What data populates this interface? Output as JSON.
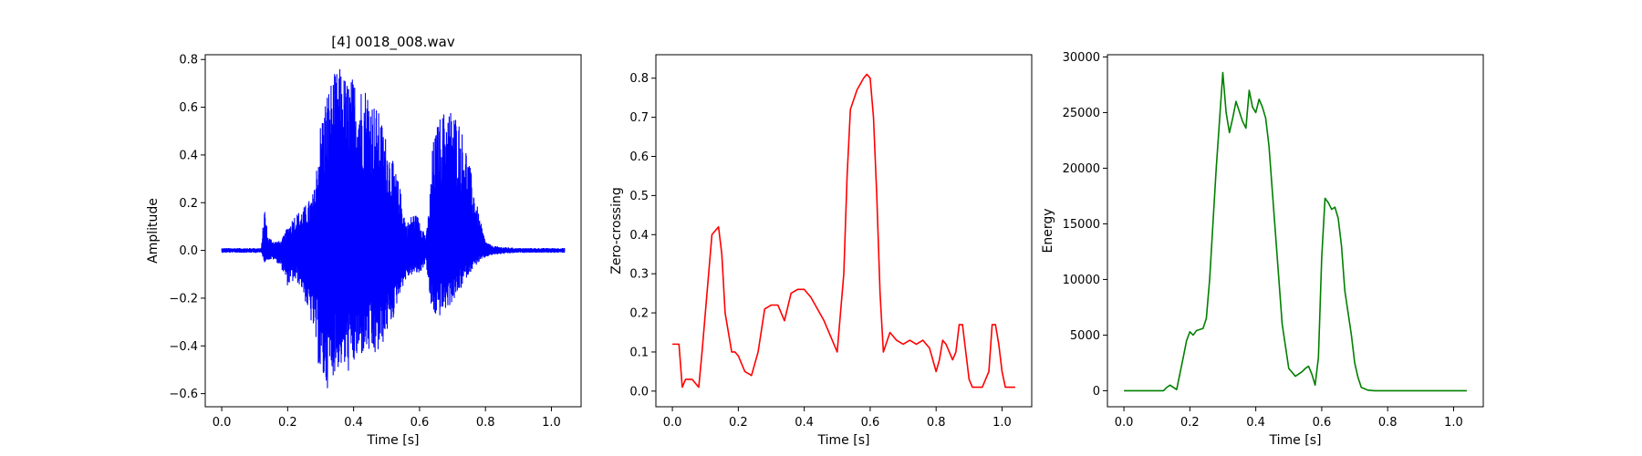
{
  "chart_data": [
    {
      "type": "line",
      "title": "[4] 0018_008.wav",
      "xlabel": "Time [s]",
      "ylabel": "Amplitude",
      "xlim": [
        -0.05,
        1.09
      ],
      "ylim": [
        -0.655,
        0.82
      ],
      "xticks": [
        0.0,
        0.2,
        0.4,
        0.6,
        0.8,
        1.0
      ],
      "xtick_labels": [
        "0.0",
        "0.2",
        "0.4",
        "0.6",
        "0.8",
        "1.0"
      ],
      "yticks": [
        -0.6,
        -0.4,
        -0.2,
        0.0,
        0.2,
        0.4,
        0.6,
        0.8
      ],
      "ytick_labels": [
        "−0.6",
        "−0.4",
        "−0.2",
        "0.0",
        "0.2",
        "0.4",
        "0.6",
        "0.8"
      ],
      "grid": false,
      "color": "#0000ff",
      "series": [
        {
          "style": "waveform",
          "envelope_x": [
            0.0,
            0.12,
            0.13,
            0.14,
            0.16,
            0.18,
            0.2,
            0.22,
            0.24,
            0.26,
            0.28,
            0.3,
            0.32,
            0.34,
            0.36,
            0.38,
            0.4,
            0.42,
            0.44,
            0.46,
            0.48,
            0.5,
            0.52,
            0.54,
            0.56,
            0.58,
            0.6,
            0.62,
            0.63,
            0.64,
            0.66,
            0.68,
            0.7,
            0.72,
            0.74,
            0.76,
            0.78,
            0.8,
            0.82,
            0.85,
            0.9,
            1.04
          ],
          "envelope_upper": [
            0.01,
            0.01,
            0.19,
            0.06,
            0.04,
            0.04,
            0.1,
            0.15,
            0.17,
            0.2,
            0.25,
            0.55,
            0.68,
            0.74,
            0.77,
            0.72,
            0.73,
            0.7,
            0.7,
            0.63,
            0.57,
            0.47,
            0.37,
            0.27,
            0.11,
            0.16,
            0.14,
            0.06,
            0.2,
            0.45,
            0.56,
            0.6,
            0.6,
            0.55,
            0.45,
            0.3,
            0.15,
            0.04,
            0.02,
            0.015,
            0.01,
            0.01
          ],
          "envelope_lower": [
            -0.01,
            -0.01,
            -0.05,
            -0.04,
            -0.04,
            -0.07,
            -0.15,
            -0.13,
            -0.15,
            -0.25,
            -0.35,
            -0.55,
            -0.58,
            -0.52,
            -0.49,
            -0.52,
            -0.49,
            -0.45,
            -0.43,
            -0.46,
            -0.43,
            -0.35,
            -0.29,
            -0.18,
            -0.12,
            -0.1,
            -0.1,
            -0.05,
            -0.2,
            -0.28,
            -0.28,
            -0.25,
            -0.22,
            -0.18,
            -0.12,
            -0.08,
            -0.05,
            -0.03,
            -0.02,
            -0.015,
            -0.01,
            -0.01
          ]
        }
      ]
    },
    {
      "type": "line",
      "title": "",
      "xlabel": "Time [s]",
      "ylabel": "Zero-crossing",
      "xlim": [
        -0.05,
        1.09
      ],
      "ylim": [
        -0.04,
        0.86
      ],
      "xticks": [
        0.0,
        0.2,
        0.4,
        0.6,
        0.8,
        1.0
      ],
      "xtick_labels": [
        "0.0",
        "0.2",
        "0.4",
        "0.6",
        "0.8",
        "1.0"
      ],
      "yticks": [
        0.0,
        0.1,
        0.2,
        0.3,
        0.4,
        0.5,
        0.6,
        0.7,
        0.8
      ],
      "ytick_labels": [
        "0.0",
        "0.1",
        "0.2",
        "0.3",
        "0.4",
        "0.5",
        "0.6",
        "0.7",
        "0.8"
      ],
      "grid": false,
      "color": "#ff0000",
      "series": [
        {
          "x": [
            0.0,
            0.02,
            0.03,
            0.04,
            0.06,
            0.08,
            0.09,
            0.1,
            0.12,
            0.14,
            0.15,
            0.16,
            0.18,
            0.19,
            0.2,
            0.22,
            0.24,
            0.26,
            0.28,
            0.3,
            0.32,
            0.34,
            0.36,
            0.38,
            0.4,
            0.42,
            0.44,
            0.46,
            0.48,
            0.5,
            0.52,
            0.53,
            0.54,
            0.56,
            0.58,
            0.59,
            0.6,
            0.61,
            0.62,
            0.63,
            0.64,
            0.66,
            0.68,
            0.7,
            0.72,
            0.74,
            0.76,
            0.78,
            0.8,
            0.81,
            0.82,
            0.83,
            0.84,
            0.85,
            0.86,
            0.87,
            0.88,
            0.89,
            0.9,
            0.91,
            0.92,
            0.94,
            0.96,
            0.97,
            0.98,
            0.99,
            1.0,
            1.01,
            1.02,
            1.04
          ],
          "y": [
            0.12,
            0.12,
            0.01,
            0.03,
            0.03,
            0.01,
            0.1,
            0.2,
            0.4,
            0.42,
            0.35,
            0.2,
            0.1,
            0.1,
            0.09,
            0.05,
            0.04,
            0.1,
            0.21,
            0.22,
            0.22,
            0.18,
            0.25,
            0.26,
            0.26,
            0.24,
            0.21,
            0.18,
            0.14,
            0.1,
            0.3,
            0.55,
            0.72,
            0.77,
            0.8,
            0.81,
            0.8,
            0.7,
            0.5,
            0.25,
            0.1,
            0.15,
            0.13,
            0.12,
            0.13,
            0.12,
            0.13,
            0.11,
            0.05,
            0.08,
            0.13,
            0.12,
            0.1,
            0.08,
            0.1,
            0.17,
            0.17,
            0.1,
            0.03,
            0.01,
            0.01,
            0.01,
            0.05,
            0.17,
            0.17,
            0.12,
            0.05,
            0.01,
            0.01,
            0.01
          ]
        }
      ]
    },
    {
      "type": "line",
      "title": "",
      "xlabel": "Time [s]",
      "ylabel": "Energy",
      "xlim": [
        -0.05,
        1.09
      ],
      "ylim": [
        -1440,
        30200
      ],
      "xticks": [
        0.0,
        0.2,
        0.4,
        0.6,
        0.8,
        1.0
      ],
      "xtick_labels": [
        "0.0",
        "0.2",
        "0.4",
        "0.6",
        "0.8",
        "1.0"
      ],
      "yticks": [
        0,
        5000,
        10000,
        15000,
        20000,
        25000,
        30000
      ],
      "ytick_labels": [
        "0",
        "5000",
        "10000",
        "15000",
        "20000",
        "25000",
        "30000"
      ],
      "grid": false,
      "color": "#008000",
      "series": [
        {
          "x": [
            0.0,
            0.12,
            0.13,
            0.14,
            0.16,
            0.18,
            0.19,
            0.2,
            0.21,
            0.22,
            0.24,
            0.25,
            0.26,
            0.28,
            0.3,
            0.31,
            0.32,
            0.33,
            0.34,
            0.36,
            0.37,
            0.38,
            0.39,
            0.4,
            0.41,
            0.42,
            0.43,
            0.44,
            0.45,
            0.46,
            0.47,
            0.48,
            0.5,
            0.52,
            0.54,
            0.55,
            0.56,
            0.57,
            0.58,
            0.59,
            0.6,
            0.61,
            0.62,
            0.63,
            0.64,
            0.65,
            0.66,
            0.67,
            0.68,
            0.69,
            0.7,
            0.71,
            0.72,
            0.74,
            0.76,
            0.78,
            0.79,
            0.8,
            0.82,
            0.85,
            0.9,
            1.04
          ],
          "y": [
            0,
            0,
            300,
            500,
            100,
            3000,
            4500,
            5300,
            5000,
            5400,
            5600,
            6500,
            10000,
            20000,
            28600,
            25000,
            23200,
            24500,
            26000,
            24200,
            23600,
            27000,
            25500,
            25000,
            26200,
            25500,
            24500,
            22000,
            18000,
            14000,
            10000,
            6000,
            2000,
            1300,
            1700,
            2000,
            2200,
            1500,
            500,
            3000,
            12000,
            17300,
            16900,
            16300,
            16500,
            15500,
            13000,
            9000,
            7000,
            5000,
            2500,
            1200,
            300,
            50,
            0,
            0,
            0,
            0,
            0,
            0,
            0,
            0
          ]
        }
      ]
    }
  ]
}
